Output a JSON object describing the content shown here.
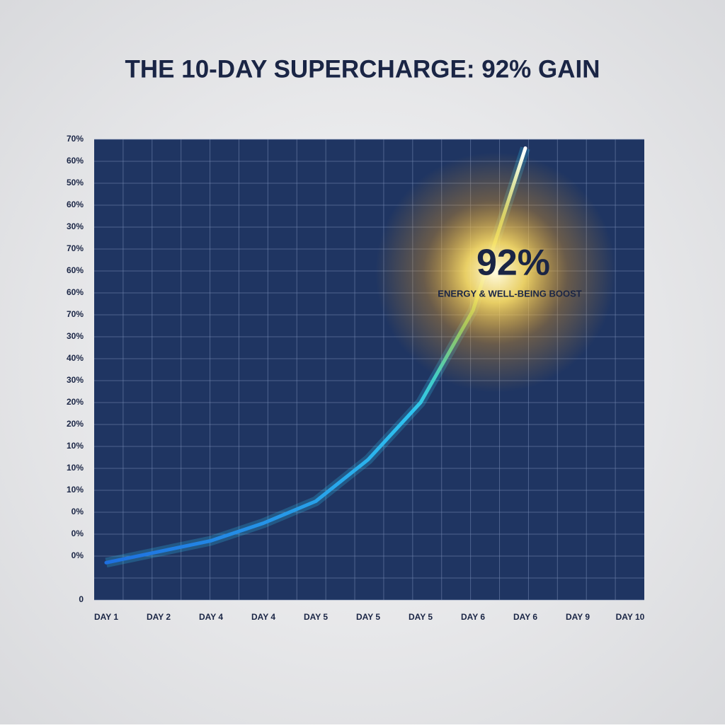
{
  "chart_data": {
    "type": "line",
    "title": "THE 10-DAY SUPERCHARGE: 92% GAIN",
    "categories": [
      "DAY 1",
      "DAY 2",
      "DAY 4",
      "DAY 4",
      "DAY 5",
      "DAY 5",
      "DAY 5",
      "DAY 6",
      "DAY 6",
      "DAY 9",
      "DAY 10"
    ],
    "series": [
      {
        "name": null,
        "color": "#2ec4f0",
        "values": [
          1.7,
          2.2,
          2.7,
          3.5,
          4.5,
          6.4,
          9.0,
          13.2,
          20.6,
          null,
          null
        ]
      }
    ],
    "ylim": [
      0,
      21
    ],
    "yticks": [
      {
        "value": 0,
        "label": "0"
      },
      {
        "value": 1,
        "label": null
      },
      {
        "value": 2,
        "label": "0%"
      },
      {
        "value": 3,
        "label": "0%"
      },
      {
        "value": 4,
        "label": "0%"
      },
      {
        "value": 5,
        "label": "10%"
      },
      {
        "value": 6,
        "label": "10%"
      },
      {
        "value": 7,
        "label": "10%"
      },
      {
        "value": 8,
        "label": "20%"
      },
      {
        "value": 9,
        "label": "20%"
      },
      {
        "value": 10,
        "label": "30%"
      },
      {
        "value": 11,
        "label": "40%"
      },
      {
        "value": 12,
        "label": "30%"
      },
      {
        "value": 13,
        "label": "70%"
      },
      {
        "value": 14,
        "label": "60%"
      },
      {
        "value": 15,
        "label": "60%"
      },
      {
        "value": 16,
        "label": "70%"
      },
      {
        "value": 17,
        "label": "30%"
      },
      {
        "value": 18,
        "label": "60%"
      },
      {
        "value": 19,
        "label": "50%"
      },
      {
        "value": 20,
        "label": "60%"
      },
      {
        "value": 21,
        "label": "70%"
      }
    ],
    "grid": true,
    "annotations": [
      {
        "text": "92%"
      },
      {
        "text": "ENERGY & WELL-BEING BOOST"
      }
    ]
  }
}
